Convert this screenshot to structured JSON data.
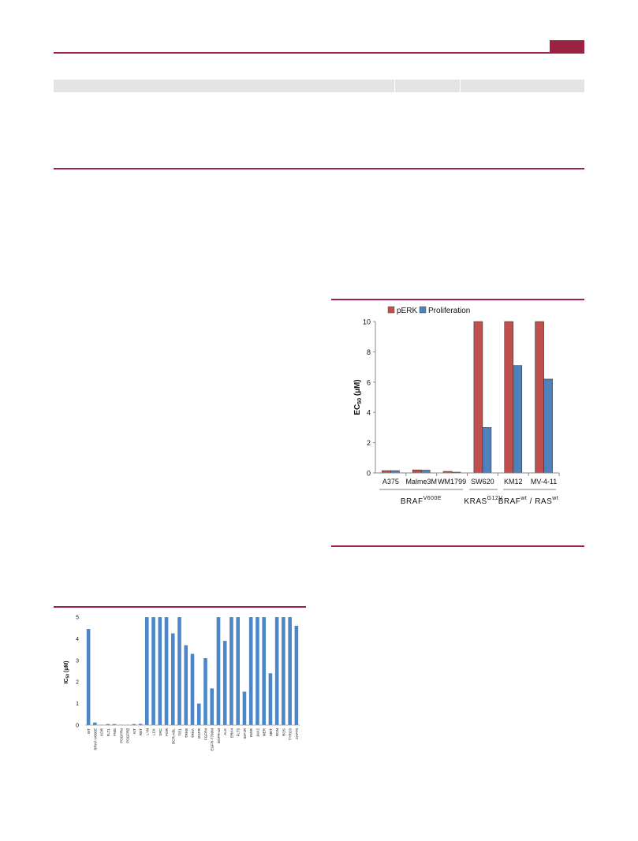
{
  "colors": {
    "accent": "#9b2243",
    "table_header": "#e3e3e3",
    "pERK": "#c0504d",
    "proliferation": "#4f81bd",
    "ic50_bar": "#4a86c8"
  },
  "chart_data": [
    {
      "type": "bar",
      "legend": [
        "pERK",
        "Proliferation"
      ],
      "legend_position": "top",
      "categories": [
        "A375",
        "Malme3M",
        "WM1799",
        "SW620",
        "KM12",
        "MV-4-11"
      ],
      "series": [
        {
          "name": "pERK",
          "values": [
            0.15,
            0.2,
            0.1,
            10,
            10,
            10
          ]
        },
        {
          "name": "Proliferation",
          "values": [
            0.15,
            0.18,
            0.05,
            3.0,
            7.1,
            6.2
          ]
        }
      ],
      "ylabel_main": "EC",
      "ylabel_sub": "50",
      "ylabel_unit": " (µM)",
      "ylim": [
        0,
        10
      ],
      "yticks": [
        "0",
        "2",
        "4",
        "6",
        "8",
        "10"
      ],
      "groups": [
        {
          "label_main": "BRAF",
          "label_sup": "V600E",
          "label_rest": ""
        },
        {
          "label_main": "KRAS",
          "label_sup": "G12V",
          "label_rest": ""
        },
        {
          "label_main": "BRAF",
          "label_sup": "wt",
          "label_rest": " / RAS",
          "label_sup2": "wt"
        }
      ]
    },
    {
      "type": "bar",
      "categories": [
        "WT",
        "BRAF-V600E",
        "KDR",
        "FLT1",
        "FMS",
        "PDGFRα",
        "PDGFRβ",
        "KIT",
        "RET",
        "LYN",
        "LCK",
        "SRC",
        "FGR",
        "BCR-ABL",
        "TIE1",
        "TRKB",
        "TRKA",
        "EGFR",
        "FGFR4",
        "EGFR-T790M",
        "EGFR-wt",
        "ALK",
        "ERK4",
        "FLT3",
        "IGF1R",
        "INSR",
        "JAK2",
        "MER",
        "MET",
        "RON",
        "ROS",
        "TYRO3",
        "ZAP70"
      ],
      "values": [
        4.45,
        0.12,
        0.02,
        0.05,
        0.05,
        0.02,
        0.02,
        0.05,
        0.06,
        5,
        5,
        5,
        5,
        4.25,
        5,
        3.7,
        3.3,
        1.0,
        3.1,
        1.7,
        5,
        3.9,
        5,
        5,
        1.55,
        5,
        5,
        5,
        2.4,
        5,
        5,
        5,
        4.6
      ],
      "ylabel_main": "IC",
      "ylabel_sub": "50",
      "ylabel_unit": " (µM)",
      "ylim": [
        0,
        5
      ],
      "yticks": [
        "0",
        "1",
        "2",
        "3",
        "4",
        "5"
      ]
    }
  ]
}
